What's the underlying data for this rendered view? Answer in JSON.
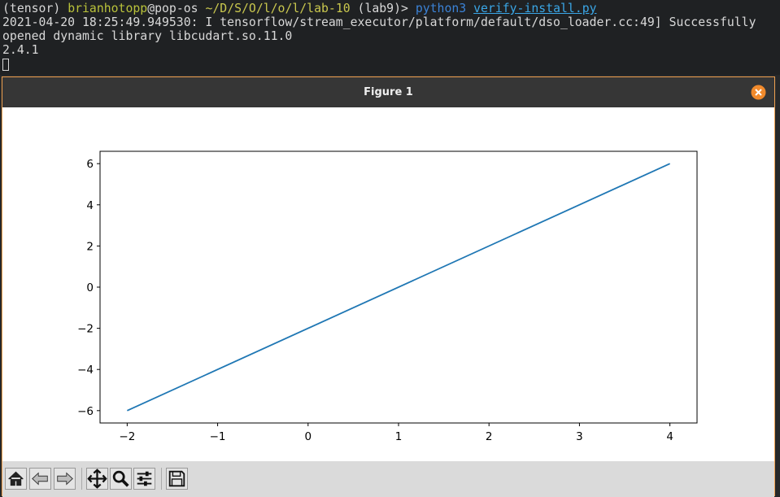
{
  "terminal": {
    "lines": [
      [
        "(tensor) ",
        "brianhotopp",
        "@pop-os ",
        "~/D/S/O/l/o/l/lab-10",
        " (lab9)> ",
        "python3",
        " ",
        "verify-install.py"
      ],
      [
        "2021-04-20 18:25:49.949530: I tensorflow/stream_executor/platform/default/dso_loader.cc:49] Successfully"
      ],
      [
        "opened dynamic library libcudart.so.11.0"
      ],
      [
        "2.4.1"
      ]
    ]
  },
  "window": {
    "title": "Figure 1"
  },
  "chart_data": {
    "type": "line",
    "x": [
      -2,
      4
    ],
    "values": [
      -6,
      6
    ],
    "color": "#1f77b4",
    "xlim": [
      -2.3,
      4.3
    ],
    "ylim": [
      -6.6,
      6.6
    ],
    "xticks": [
      {
        "value": -2,
        "label": "−2"
      },
      {
        "value": -1,
        "label": "−1"
      },
      0,
      1,
      2,
      3,
      4
    ],
    "yticks": [
      {
        "value": -6,
        "label": "−6"
      },
      {
        "value": -4,
        "label": "−4"
      },
      {
        "value": -2,
        "label": "−2"
      },
      0,
      2,
      4,
      6
    ],
    "grid": false
  }
}
